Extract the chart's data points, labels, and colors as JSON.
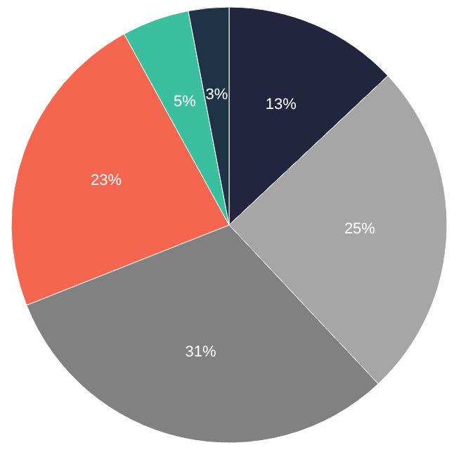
{
  "chart_data": {
    "type": "pie",
    "categories": [
      null,
      null,
      null,
      null,
      null,
      null
    ],
    "values": [
      13,
      25,
      31,
      23,
      5,
      3
    ],
    "colors": [
      "#22253d",
      "#a6a6a6",
      "#818181",
      "#f4664f",
      "#3cbf9e",
      "#1e3446"
    ],
    "value_labels": [
      "13%",
      "25%",
      "31%",
      "23%",
      "5%",
      "3%"
    ]
  }
}
